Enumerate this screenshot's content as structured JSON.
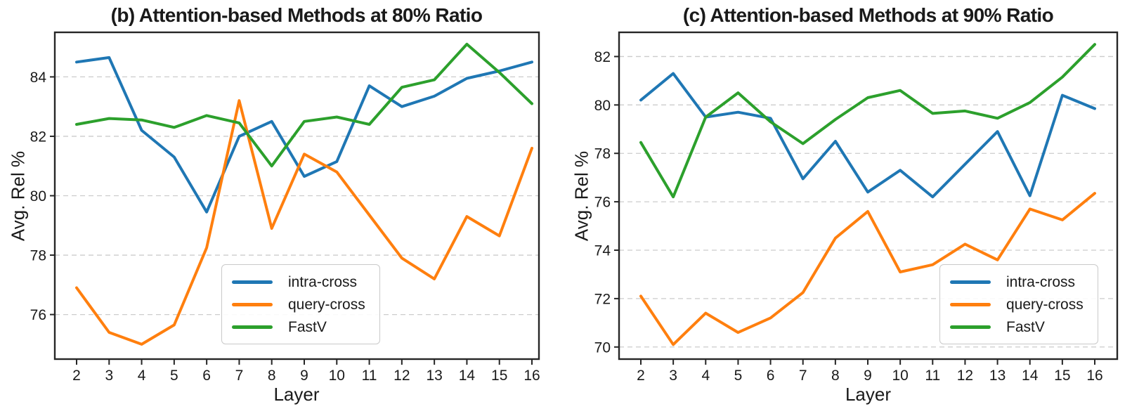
{
  "figure": {
    "description": "Two side-by-side line charts comparing attention-based token pruning methods across transformer layers"
  },
  "chart_data": [
    {
      "type": "line",
      "title": "(b) Attention-based Methods at 80% Ratio",
      "xlabel": "Layer",
      "ylabel": "Avg. Rel %",
      "x": [
        2,
        3,
        4,
        5,
        6,
        7,
        8,
        9,
        10,
        11,
        12,
        13,
        14,
        15,
        16
      ],
      "yticks": [
        76,
        78,
        80,
        82,
        84
      ],
      "ylim": [
        74.5,
        85.5
      ],
      "grid": true,
      "legend_position": "lower center",
      "series": [
        {
          "name": "intra-cross",
          "color": "#1f77b4",
          "values": [
            84.5,
            84.65,
            82.2,
            81.3,
            79.45,
            82.0,
            82.5,
            80.65,
            81.15,
            83.7,
            83.0,
            83.35,
            83.95,
            84.2,
            84.5
          ]
        },
        {
          "name": "query-cross",
          "color": "#ff7f0e",
          "values": [
            76.9,
            75.4,
            75.0,
            75.65,
            78.25,
            83.2,
            78.9,
            81.4,
            80.8,
            79.35,
            77.9,
            77.2,
            79.3,
            78.65,
            81.6
          ]
        },
        {
          "name": "FastV",
          "color": "#2ca02c",
          "values": [
            82.4,
            82.6,
            82.55,
            82.3,
            82.7,
            82.45,
            81.0,
            82.5,
            82.65,
            82.4,
            83.65,
            83.9,
            85.1,
            84.15,
            83.1
          ]
        }
      ]
    },
    {
      "type": "line",
      "title": "(c) Attention-based Methods at 90% Ratio",
      "xlabel": "Layer",
      "ylabel": "Avg. Rel %",
      "x": [
        2,
        3,
        4,
        5,
        6,
        7,
        8,
        9,
        10,
        11,
        12,
        13,
        14,
        15,
        16
      ],
      "yticks": [
        70,
        72,
        74,
        76,
        78,
        80,
        82
      ],
      "ylim": [
        69.5,
        83.0
      ],
      "grid": true,
      "legend_position": "lower right",
      "series": [
        {
          "name": "intra-cross",
          "color": "#1f77b4",
          "values": [
            80.2,
            81.3,
            79.5,
            79.7,
            79.45,
            76.95,
            78.5,
            76.4,
            77.3,
            76.2,
            77.55,
            78.9,
            76.25,
            80.4,
            79.85
          ]
        },
        {
          "name": "query-cross",
          "color": "#ff7f0e",
          "values": [
            72.1,
            70.1,
            71.4,
            70.6,
            71.2,
            72.25,
            74.5,
            75.6,
            73.1,
            73.4,
            74.25,
            73.6,
            75.7,
            75.25,
            76.35
          ]
        },
        {
          "name": "FastV",
          "color": "#2ca02c",
          "values": [
            78.45,
            76.2,
            79.5,
            80.5,
            79.3,
            78.4,
            79.4,
            80.3,
            80.6,
            79.65,
            79.75,
            79.45,
            80.1,
            81.15,
            82.5
          ]
        }
      ]
    }
  ],
  "style": {
    "grid_color": "#cccccc",
    "spine_color": "#262626",
    "text_color": "#1a1a1a"
  }
}
